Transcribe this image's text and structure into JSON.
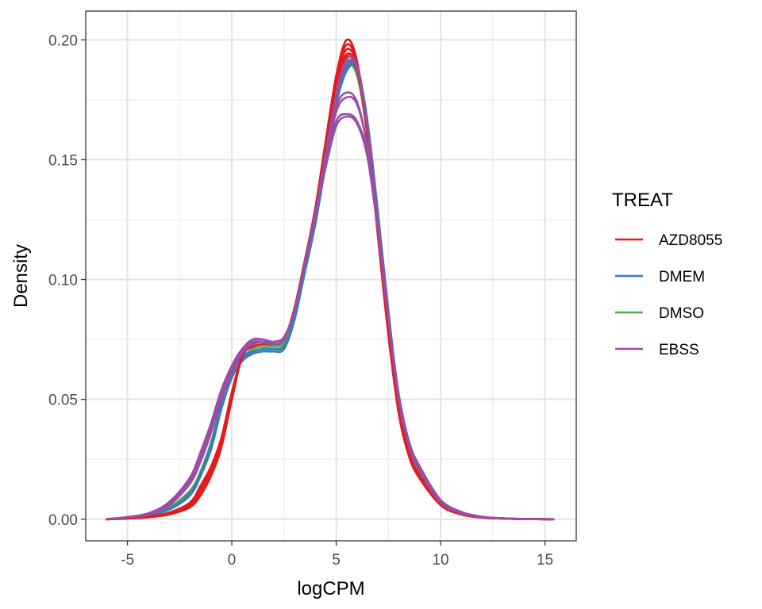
{
  "chart_data": {
    "type": "line",
    "title": "",
    "xlabel": "logCPM",
    "ylabel": "Density",
    "xlim": [
      -7,
      16.5
    ],
    "ylim": [
      -0.009,
      0.212
    ],
    "x_ticks": [
      -5,
      0,
      5,
      10,
      15
    ],
    "x_tick_labels": [
      "-5",
      "0",
      "5",
      "10",
      "15"
    ],
    "y_ticks": [
      0.0,
      0.05,
      0.1,
      0.15,
      0.2
    ],
    "y_tick_labels": [
      "0.00",
      "0.05",
      "0.10",
      "0.15",
      "0.20"
    ],
    "grid": true,
    "legend": {
      "title": "TREAT",
      "placement": "right",
      "items": [
        {
          "label": "AZD8055",
          "color": "#e41a1c"
        },
        {
          "label": "DMEM",
          "color": "#377eb8"
        },
        {
          "label": "DMSO",
          "color": "#4daf4a"
        },
        {
          "label": "EBSS",
          "color": "#984ea3"
        }
      ]
    },
    "x": [
      -6,
      -5,
      -4,
      -3,
      -2,
      -1.5,
      -1,
      -0.5,
      0,
      0.5,
      1,
      1.5,
      2,
      2.5,
      3,
      3.5,
      4,
      4.5,
      5,
      5.5,
      6,
      6.5,
      7,
      7.5,
      8,
      8.5,
      9,
      10,
      11,
      12,
      13,
      14,
      15.4
    ],
    "series": [
      {
        "group": "DMSO",
        "color": "#4daf4a",
        "values": [
          0,
          0.0008,
          0.002,
          0.005,
          0.012,
          0.02,
          0.032,
          0.048,
          0.06,
          0.066,
          0.07,
          0.071,
          0.071,
          0.073,
          0.085,
          0.105,
          0.125,
          0.15,
          0.175,
          0.191,
          0.186,
          0.16,
          0.12,
          0.08,
          0.046,
          0.028,
          0.019,
          0.007,
          0.0025,
          0.0008,
          0.0003,
          0.0001,
          0
        ]
      },
      {
        "group": "DMSO",
        "color": "#4daf4a",
        "values": [
          0,
          0.0007,
          0.0018,
          0.0045,
          0.011,
          0.019,
          0.031,
          0.047,
          0.059,
          0.067,
          0.071,
          0.072,
          0.072,
          0.074,
          0.086,
          0.106,
          0.126,
          0.151,
          0.176,
          0.189,
          0.185,
          0.16,
          0.121,
          0.081,
          0.047,
          0.029,
          0.019,
          0.007,
          0.0025,
          0.0008,
          0.0003,
          0.0001,
          0
        ]
      },
      {
        "group": "DMEM",
        "color": "#377eb8",
        "values": [
          0,
          0.0006,
          0.0016,
          0.004,
          0.01,
          0.018,
          0.029,
          0.046,
          0.059,
          0.066,
          0.069,
          0.07,
          0.07,
          0.071,
          0.083,
          0.103,
          0.123,
          0.148,
          0.173,
          0.187,
          0.188,
          0.165,
          0.127,
          0.086,
          0.05,
          0.03,
          0.02,
          0.007,
          0.0025,
          0.0008,
          0.0003,
          0.0001,
          0
        ]
      },
      {
        "group": "DMEM",
        "color": "#377eb8",
        "values": [
          0,
          0.0006,
          0.0017,
          0.0042,
          0.0105,
          0.018,
          0.03,
          0.047,
          0.06,
          0.067,
          0.07,
          0.071,
          0.071,
          0.072,
          0.084,
          0.104,
          0.124,
          0.149,
          0.174,
          0.188,
          0.189,
          0.166,
          0.128,
          0.087,
          0.051,
          0.031,
          0.02,
          0.007,
          0.0025,
          0.0008,
          0.0003,
          0.0001,
          0
        ]
      },
      {
        "group": "DMEM",
        "color": "#377eb8",
        "values": [
          0,
          0.0007,
          0.0018,
          0.0044,
          0.011,
          0.019,
          0.031,
          0.048,
          0.061,
          0.068,
          0.07,
          0.071,
          0.071,
          0.072,
          0.084,
          0.104,
          0.124,
          0.149,
          0.174,
          0.189,
          0.187,
          0.164,
          0.126,
          0.086,
          0.05,
          0.03,
          0.02,
          0.007,
          0.0025,
          0.0008,
          0.0003,
          0.0001,
          0
        ]
      },
      {
        "group": "AZD8055",
        "color": "#e41a1c",
        "values": [
          0,
          0.0003,
          0.0008,
          0.002,
          0.005,
          0.01,
          0.018,
          0.03,
          0.05,
          0.068,
          0.072,
          0.073,
          0.073,
          0.075,
          0.088,
          0.108,
          0.13,
          0.158,
          0.185,
          0.2,
          0.191,
          0.16,
          0.118,
          0.077,
          0.044,
          0.026,
          0.017,
          0.006,
          0.002,
          0.0007,
          0.0003,
          0.0001,
          0
        ]
      },
      {
        "group": "AZD8055",
        "color": "#e41a1c",
        "values": [
          0,
          0.0003,
          0.0009,
          0.0022,
          0.0055,
          0.011,
          0.019,
          0.031,
          0.05,
          0.068,
          0.072,
          0.073,
          0.073,
          0.075,
          0.088,
          0.108,
          0.129,
          0.157,
          0.184,
          0.198,
          0.19,
          0.16,
          0.118,
          0.077,
          0.044,
          0.026,
          0.017,
          0.006,
          0.002,
          0.0007,
          0.0003,
          0.0001,
          0
        ]
      },
      {
        "group": "AZD8055",
        "color": "#e41a1c",
        "values": [
          0,
          0.0004,
          0.001,
          0.0025,
          0.006,
          0.012,
          0.02,
          0.032,
          0.051,
          0.068,
          0.072,
          0.073,
          0.073,
          0.075,
          0.088,
          0.108,
          0.129,
          0.156,
          0.183,
          0.196,
          0.189,
          0.16,
          0.119,
          0.078,
          0.045,
          0.027,
          0.018,
          0.006,
          0.002,
          0.0007,
          0.0003,
          0.0001,
          0
        ]
      },
      {
        "group": "AZD8055",
        "color": "#e41a1c",
        "values": [
          0,
          0.0004,
          0.001,
          0.0026,
          0.0065,
          0.013,
          0.021,
          0.033,
          0.052,
          0.068,
          0.072,
          0.073,
          0.073,
          0.075,
          0.088,
          0.108,
          0.129,
          0.156,
          0.182,
          0.194,
          0.188,
          0.16,
          0.119,
          0.078,
          0.045,
          0.027,
          0.018,
          0.006,
          0.002,
          0.0007,
          0.0003,
          0.0001,
          0
        ]
      },
      {
        "group": "AZD8055",
        "color": "#e41a1c",
        "values": [
          0,
          0.0004,
          0.0011,
          0.0028,
          0.007,
          0.014,
          0.022,
          0.034,
          0.053,
          0.068,
          0.072,
          0.073,
          0.073,
          0.075,
          0.088,
          0.108,
          0.129,
          0.155,
          0.181,
          0.193,
          0.187,
          0.16,
          0.119,
          0.078,
          0.045,
          0.027,
          0.018,
          0.006,
          0.002,
          0.0007,
          0.0003,
          0.0001,
          0
        ]
      },
      {
        "group": "EBSS",
        "color": "#984ea3",
        "values": [
          0,
          0.0008,
          0.002,
          0.006,
          0.015,
          0.025,
          0.037,
          0.051,
          0.062,
          0.07,
          0.074,
          0.074,
          0.073,
          0.075,
          0.087,
          0.107,
          0.127,
          0.15,
          0.172,
          0.178,
          0.174,
          0.155,
          0.121,
          0.083,
          0.05,
          0.031,
          0.021,
          0.008,
          0.003,
          0.001,
          0.0004,
          0.0001,
          0
        ]
      },
      {
        "group": "EBSS",
        "color": "#984ea3",
        "values": [
          0,
          0.0008,
          0.0022,
          0.0065,
          0.016,
          0.026,
          0.038,
          0.052,
          0.063,
          0.071,
          0.075,
          0.075,
          0.074,
          0.076,
          0.087,
          0.107,
          0.127,
          0.149,
          0.17,
          0.176,
          0.173,
          0.155,
          0.121,
          0.083,
          0.051,
          0.031,
          0.021,
          0.008,
          0.003,
          0.001,
          0.0004,
          0.0001,
          0
        ]
      },
      {
        "group": "EBSS",
        "color": "#984ea3",
        "values": [
          0,
          0.0009,
          0.0024,
          0.007,
          0.017,
          0.027,
          0.039,
          0.053,
          0.064,
          0.071,
          0.074,
          0.074,
          0.074,
          0.076,
          0.087,
          0.107,
          0.126,
          0.148,
          0.166,
          0.169,
          0.166,
          0.152,
          0.12,
          0.083,
          0.051,
          0.032,
          0.022,
          0.008,
          0.003,
          0.001,
          0.0004,
          0.0001,
          0
        ]
      },
      {
        "group": "EBSS",
        "color": "#984ea3",
        "values": [
          0,
          0.0009,
          0.0025,
          0.0072,
          0.0175,
          0.028,
          0.04,
          0.054,
          0.064,
          0.071,
          0.074,
          0.074,
          0.074,
          0.076,
          0.087,
          0.106,
          0.126,
          0.147,
          0.164,
          0.168,
          0.165,
          0.151,
          0.12,
          0.084,
          0.052,
          0.032,
          0.022,
          0.008,
          0.003,
          0.001,
          0.0004,
          0.0001,
          0
        ]
      },
      {
        "group": "EBSS",
        "color": "#984ea3",
        "values": [
          0,
          0.0008,
          0.0021,
          0.006,
          0.0155,
          0.025,
          0.037,
          0.051,
          0.062,
          0.07,
          0.073,
          0.074,
          0.073,
          0.075,
          0.087,
          0.107,
          0.128,
          0.152,
          0.176,
          0.19,
          0.188,
          0.163,
          0.125,
          0.085,
          0.05,
          0.03,
          0.02,
          0.007,
          0.0025,
          0.0008,
          0.0003,
          0.0001,
          0
        ]
      },
      {
        "group": "EBSS",
        "color": "#984ea3",
        "values": [
          0,
          0.0008,
          0.002,
          0.0058,
          0.015,
          0.024,
          0.036,
          0.05,
          0.061,
          0.069,
          0.073,
          0.074,
          0.073,
          0.075,
          0.087,
          0.107,
          0.128,
          0.153,
          0.177,
          0.192,
          0.189,
          0.163,
          0.124,
          0.084,
          0.049,
          0.03,
          0.02,
          0.007,
          0.0025,
          0.0008,
          0.0003,
          0.0001,
          0
        ]
      }
    ]
  }
}
